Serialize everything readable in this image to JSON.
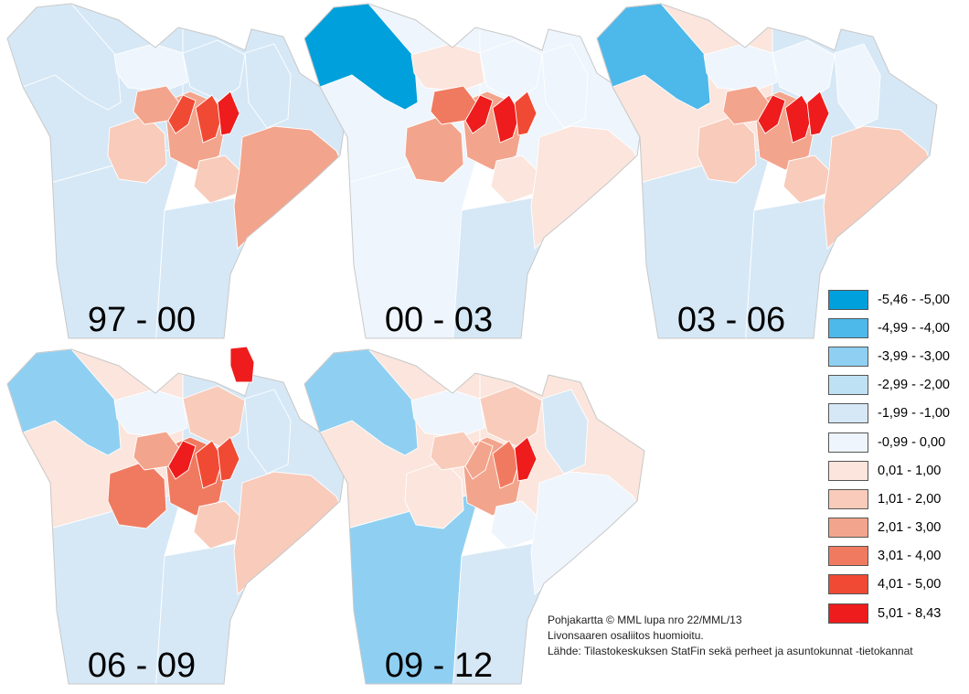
{
  "legend": {
    "classes": [
      {
        "label": "-5,46 - -5,00",
        "color": "#00a0dc"
      },
      {
        "label": "-4,99 - -4,00",
        "color": "#4db8ea"
      },
      {
        "label": "-3,99 - -3,00",
        "color": "#8fd0f2"
      },
      {
        "label": "-2,99 - -2,00",
        "color": "#bfe1f4"
      },
      {
        "label": "-1,99 - -1,00",
        "color": "#d6e8f6"
      },
      {
        "label": "-0,99 - 0,00",
        "color": "#eef5fc"
      },
      {
        "label": "0,01 - 1,00",
        "color": "#fbe5dc"
      },
      {
        "label": "1,01 - 2,00",
        "color": "#f8cbbb"
      },
      {
        "label": "2,01 - 3,00",
        "color": "#f3a48c"
      },
      {
        "label": "3,01 - 4,00",
        "color": "#f07a60"
      },
      {
        "label": "4,01 - 5,00",
        "color": "#f04a34"
      },
      {
        "label": "5,01 - 8,43",
        "color": "#ee1c1c"
      }
    ]
  },
  "panels": [
    {
      "label": "97 - 00",
      "outer": [
        4,
        4,
        4,
        4
      ],
      "inner": [
        7,
        8,
        8,
        7
      ],
      "west": 4,
      "north": [
        5,
        4,
        4
      ],
      "east": 8,
      "central": [
        10,
        10,
        11
      ],
      "blob": null
    },
    {
      "label": "00 - 03",
      "outer": [
        5,
        5,
        5,
        4
      ],
      "inner": [
        8,
        8,
        9,
        6
      ],
      "west": 0,
      "north": [
        6,
        5,
        5
      ],
      "east": 6,
      "central": [
        11,
        11,
        10
      ],
      "blob": null
    },
    {
      "label": "03 - 06",
      "outer": [
        6,
        4,
        4,
        4
      ],
      "inner": [
        7,
        8,
        8,
        7
      ],
      "west": 1,
      "north": [
        5,
        5,
        5
      ],
      "east": 7,
      "central": [
        11,
        11,
        11
      ],
      "blob": null
    },
    {
      "label": "06 - 09",
      "outer": [
        6,
        4,
        4,
        4
      ],
      "inner": [
        9,
        9,
        8,
        7
      ],
      "west": 2,
      "north": [
        5,
        7,
        4
      ],
      "east": 7,
      "central": [
        11,
        10,
        10
      ],
      "blob": 11
    },
    {
      "label": "09 - 12",
      "outer": [
        6,
        6,
        2,
        4
      ],
      "inner": [
        6,
        8,
        7,
        5
      ],
      "west": 2,
      "north": [
        5,
        7,
        4
      ],
      "east": 5,
      "central": [
        8,
        9,
        11
      ],
      "blob": null
    }
  ],
  "credits": {
    "line1": "Pohjakartta © MML lupa nro 22/MML/13",
    "line2": "Livonsaaren osaliitos huomioitu.",
    "line3": "Lähde: Tilastokeskuksen StatFin sekä perheet ja asuntokunnat -tietokannat"
  }
}
